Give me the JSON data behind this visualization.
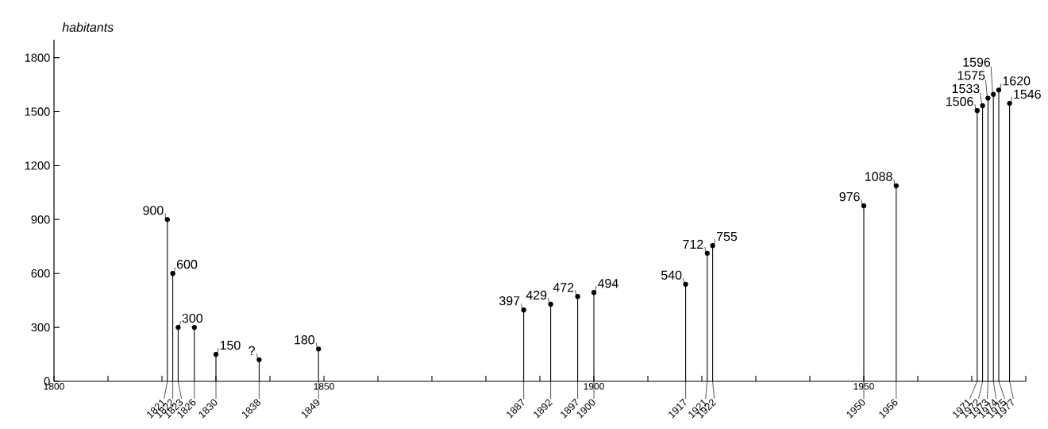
{
  "chart_data": {
    "type": "lollipop",
    "ylabel": "habitants",
    "color": "#000000",
    "marker": "circle",
    "x": [
      1821,
      1822,
      1823,
      1826,
      1830,
      1838,
      1849,
      1887,
      1892,
      1897,
      1900,
      1917,
      1921,
      1922,
      1950,
      1956,
      1971,
      1972,
      1973,
      1974,
      1975,
      1977
    ],
    "values": [
      900,
      600,
      300,
      300,
      150,
      120,
      180,
      397,
      429,
      472,
      494,
      540,
      712,
      755,
      976,
      1088,
      1506,
      1533,
      1575,
      1596,
      1620,
      1546
    ],
    "value_labels": [
      "900",
      "600",
      "300",
      null,
      "150",
      "?",
      "180",
      "397",
      "429",
      "472",
      "494",
      "540",
      "712",
      "755",
      "976",
      "1088",
      "1506",
      "1533",
      "1575",
      "1596",
      "1620",
      "1546"
    ],
    "xlim": [
      1800,
      1980
    ],
    "xticks": [
      1800,
      {
        "value": 1810,
        "label": null
      },
      {
        "value": 1820,
        "label": null
      },
      {
        "value": 1830,
        "label": null
      },
      {
        "value": 1840,
        "label": null
      },
      1850,
      {
        "value": 1860,
        "label": null
      },
      {
        "value": 1870,
        "label": null
      },
      {
        "value": 1880,
        "label": null
      },
      {
        "value": 1890,
        "label": null
      },
      1900,
      {
        "value": 1910,
        "label": null
      },
      {
        "value": 1920,
        "label": null
      },
      {
        "value": 1930,
        "label": null
      },
      {
        "value": 1940,
        "label": null
      },
      1950,
      {
        "value": 1960,
        "label": null
      },
      {
        "value": 1970,
        "label": null
      },
      {
        "value": 1980,
        "label": null
      }
    ],
    "ylim": [
      0,
      1900
    ],
    "yticks": [
      0,
      300,
      600,
      900,
      1200,
      1500,
      1800
    ],
    "annotations": [
      "1821",
      "1822",
      "1823",
      "1826",
      "1830",
      "1838",
      "1849",
      "1887",
      "1892",
      "1897",
      "1900",
      "1917",
      "1921",
      "1922",
      "1950",
      "1956",
      "1971",
      "1972",
      "1973",
      "1974",
      "1975",
      "1977"
    ]
  }
}
